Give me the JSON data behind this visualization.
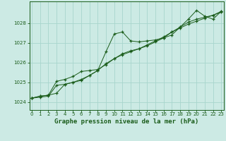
{
  "title": "Graphe pression niveau de la mer (hPa)",
  "bg_color": "#cceae4",
  "grid_color": "#a8d5cd",
  "line_color": "#1a5c1a",
  "xlim_min": -0.3,
  "xlim_max": 23.3,
  "ylim_min": 1023.6,
  "ylim_max": 1029.1,
  "yticks": [
    1024,
    1025,
    1026,
    1027,
    1028
  ],
  "xtick_labels": [
    "0",
    "1",
    "2",
    "3",
    "4",
    "5",
    "6",
    "7",
    "8",
    "9",
    "10",
    "11",
    "12",
    "13",
    "14",
    "15",
    "16",
    "17",
    "18",
    "19",
    "20",
    "21",
    "22",
    "23"
  ],
  "series1_x": [
    0,
    1,
    2,
    3,
    4,
    5,
    6,
    7,
    8,
    9,
    10,
    11,
    12,
    13,
    14,
    15,
    16,
    17,
    18,
    19,
    20,
    21,
    22,
    23
  ],
  "series1_y": [
    1024.2,
    1024.3,
    1024.35,
    1024.45,
    1024.9,
    1025.0,
    1025.15,
    1025.35,
    1025.6,
    1026.55,
    1027.45,
    1027.55,
    1027.1,
    1027.05,
    1027.1,
    1027.15,
    1027.25,
    1027.4,
    1027.8,
    1028.2,
    1028.65,
    1028.35,
    1028.2,
    1028.6
  ],
  "series2_x": [
    0,
    1,
    2,
    3,
    4,
    5,
    6,
    7,
    8,
    9,
    10,
    11,
    12,
    13,
    14,
    15,
    16,
    17,
    18,
    19,
    20,
    21,
    22,
    23
  ],
  "series2_y": [
    1024.2,
    1024.25,
    1024.3,
    1024.85,
    1024.9,
    1025.0,
    1025.1,
    1025.35,
    1025.6,
    1025.95,
    1026.2,
    1026.4,
    1026.55,
    1026.7,
    1026.85,
    1027.05,
    1027.25,
    1027.55,
    1027.75,
    1027.95,
    1028.1,
    1028.25,
    1028.4,
    1028.55
  ],
  "series3_x": [
    0,
    1,
    2,
    3,
    4,
    5,
    6,
    7,
    8,
    9,
    10,
    11,
    12,
    13,
    14,
    15,
    16,
    17,
    18,
    19,
    20,
    21,
    22,
    23
  ],
  "series3_y": [
    1024.2,
    1024.3,
    1024.35,
    1025.05,
    1025.15,
    1025.3,
    1025.55,
    1025.6,
    1025.65,
    1025.9,
    1026.2,
    1026.45,
    1026.6,
    1026.7,
    1026.9,
    1027.1,
    1027.3,
    1027.55,
    1027.8,
    1028.05,
    1028.2,
    1028.3,
    1028.4,
    1028.6
  ],
  "ylabel_fontsize": 5.0,
  "xlabel_fontsize": 5.0,
  "title_fontsize": 6.5
}
